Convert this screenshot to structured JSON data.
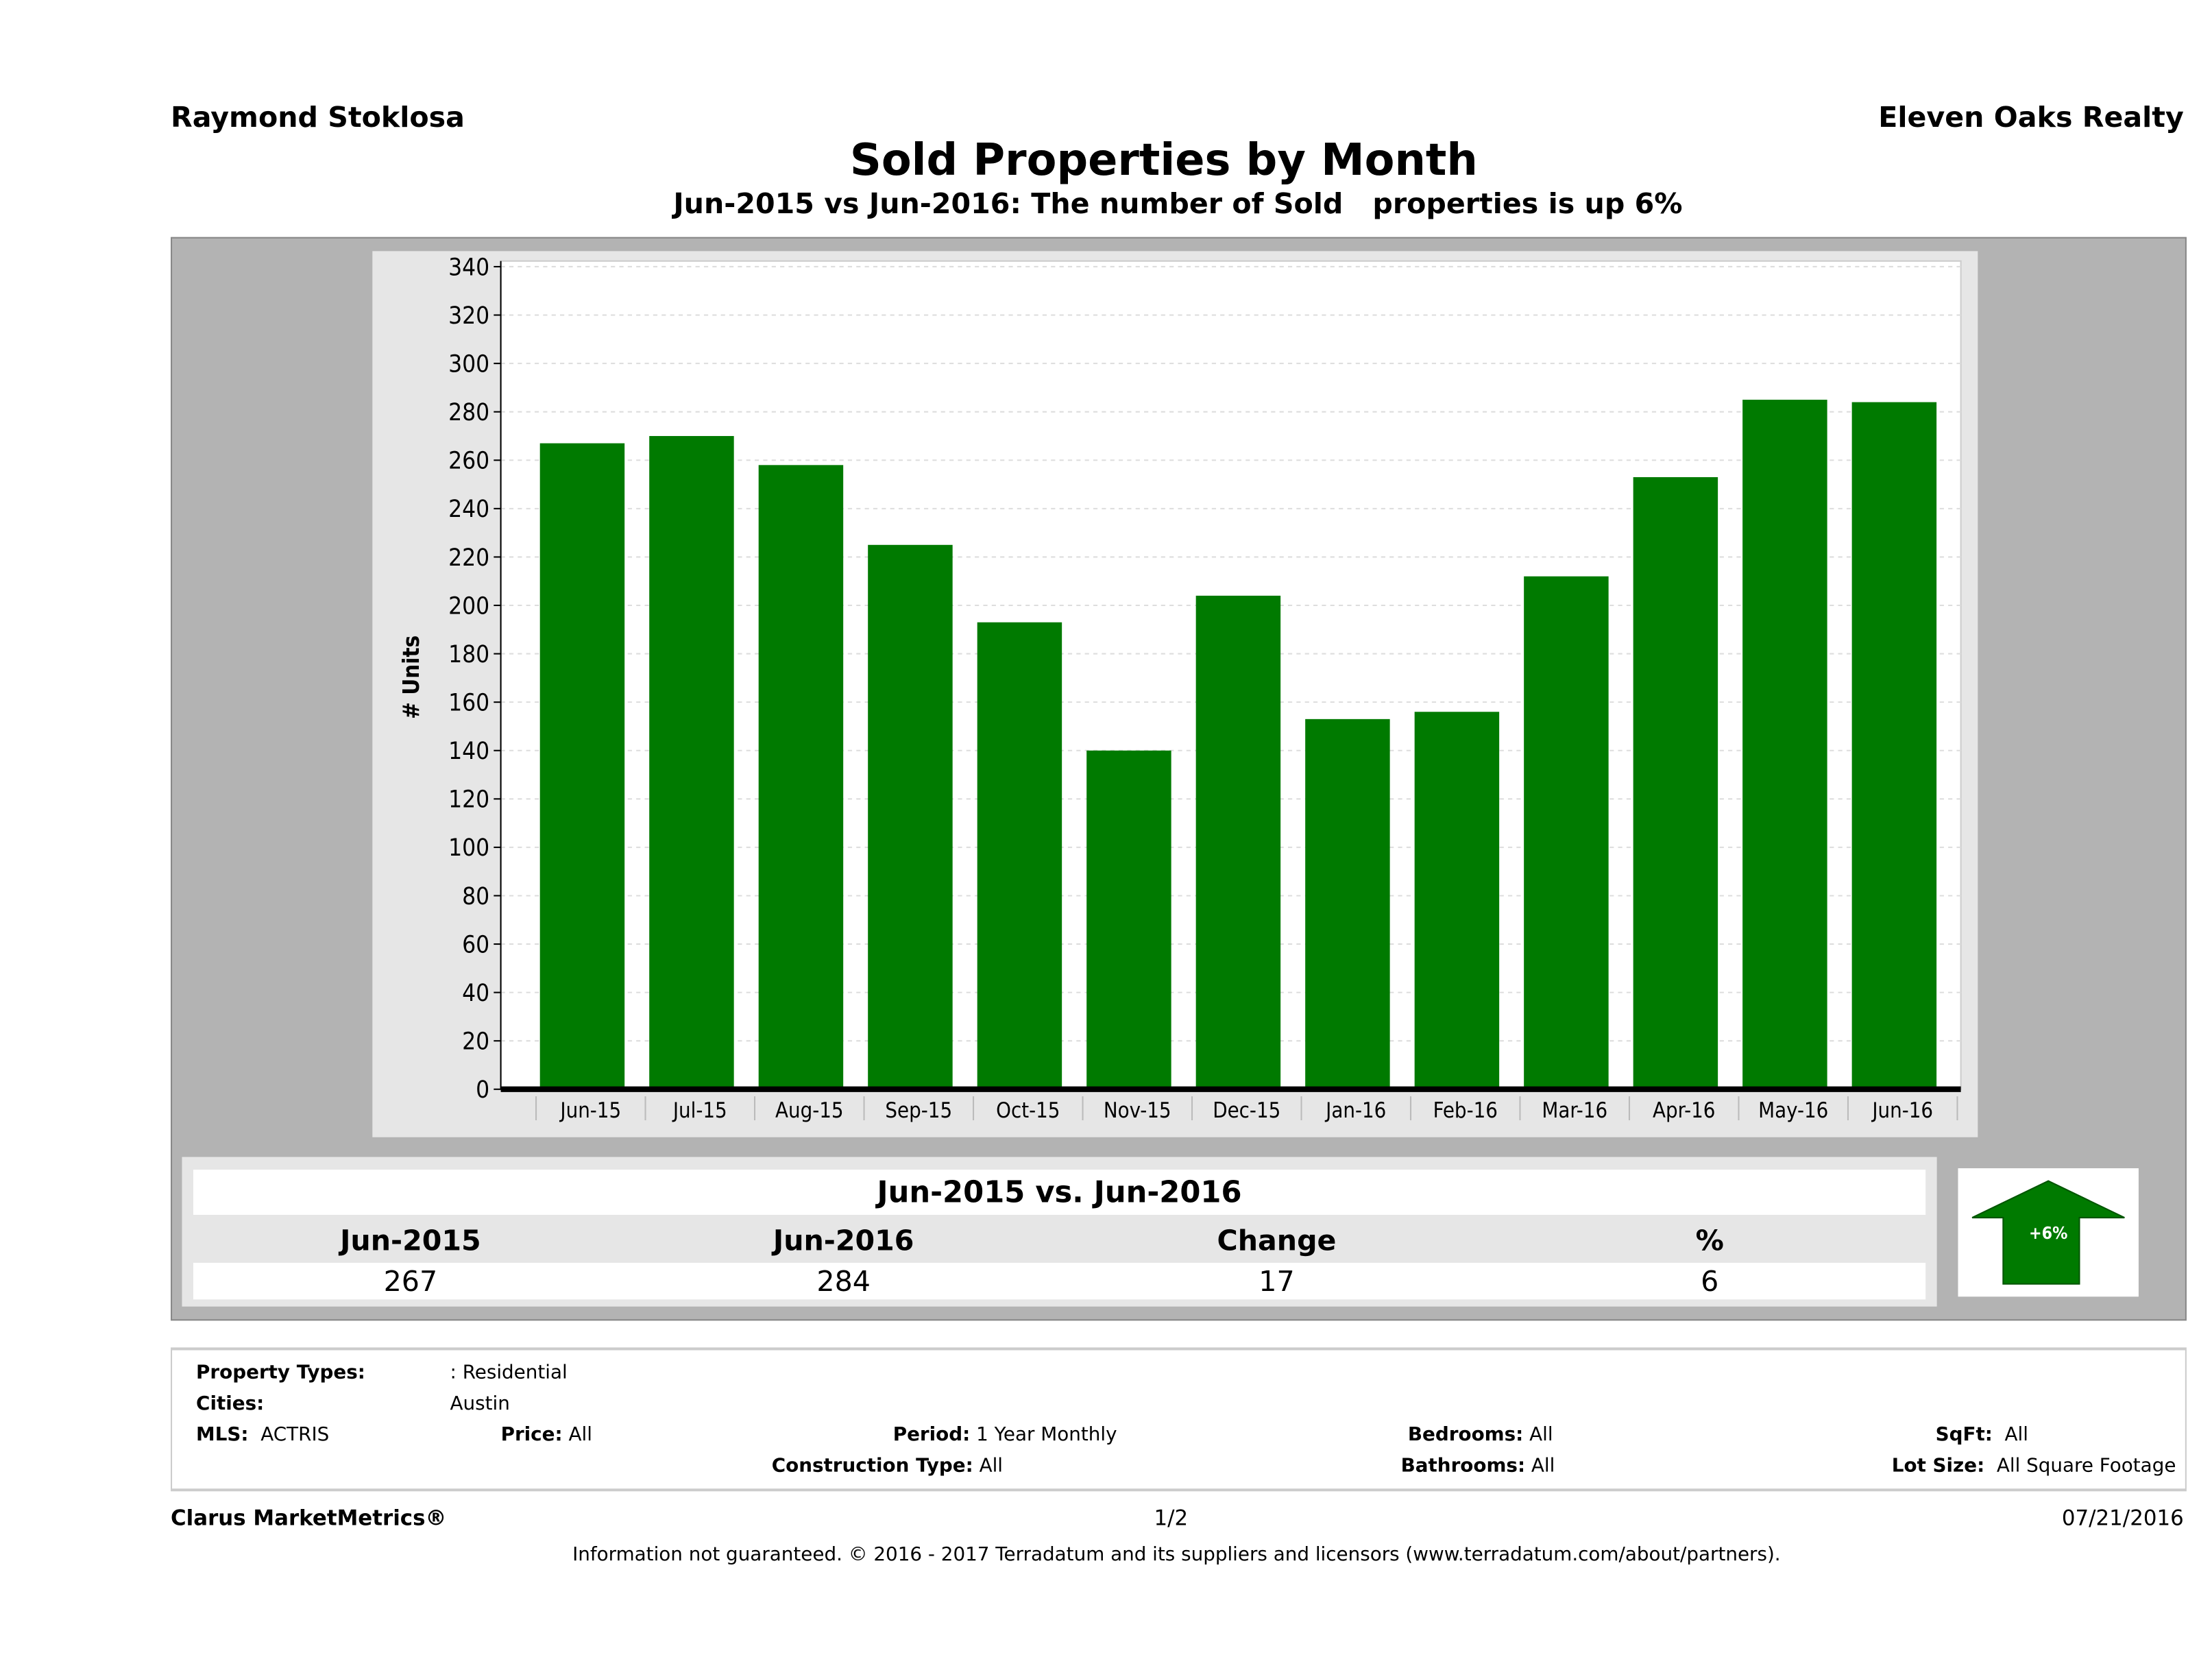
{
  "header": {
    "agent": "Raymond Stoklosa",
    "brokerage": "Eleven Oaks Realty"
  },
  "chart_data": {
    "type": "bar",
    "title": "Sold Properties by Month",
    "subtitle": "Jun-2015 vs Jun-2016: The number of Sold   properties is up 6%",
    "ylabel": "# Units",
    "xlabel": "",
    "ylim": [
      0,
      340
    ],
    "yticks": [
      0,
      20,
      40,
      60,
      80,
      100,
      120,
      140,
      160,
      180,
      200,
      220,
      240,
      260,
      280,
      300,
      320,
      340
    ],
    "grid": true,
    "bar_color": "#007a00",
    "categories": [
      "Jun-15",
      "Jul-15",
      "Aug-15",
      "Sep-15",
      "Oct-15",
      "Nov-15",
      "Dec-15",
      "Jan-16",
      "Feb-16",
      "Mar-16",
      "Apr-16",
      "May-16",
      "Jun-16"
    ],
    "values": [
      267,
      270,
      258,
      225,
      193,
      140,
      204,
      153,
      156,
      212,
      253,
      285,
      284
    ]
  },
  "summary": {
    "title": "Jun-2015 vs. Jun-2016",
    "headers": [
      "Jun-2015",
      "Jun-2016",
      "Change",
      "%"
    ],
    "values": [
      "267",
      "284",
      "17",
      "6"
    ],
    "badge": "+6%",
    "badge_color": "#007a00"
  },
  "criteria": {
    "property_types_label": "Property Types:",
    "property_types": ": Residential",
    "cities_label": "Cities:",
    "cities": "Austin",
    "mls_label": "MLS:",
    "mls": "ACTRIS",
    "price_label": "Price:",
    "price": "All",
    "period_label": "Period:",
    "period": "1 Year Monthly",
    "bedrooms_label": "Bedrooms:",
    "bedrooms": "All",
    "sqft_label": "SqFt:",
    "sqft": "All",
    "construction_label": "Construction Type:",
    "construction": "All",
    "bathrooms_label": "Bathrooms:",
    "bathrooms": "All",
    "lot_label": "Lot Size:",
    "lot": "All Square Footage"
  },
  "footer": {
    "brand": "Clarus MarketMetrics®",
    "page": "1/2",
    "date": "07/21/2016",
    "disclaimer": "Information not guaranteed. © 2016 - 2017 Terradatum and its suppliers and licensors (www.terradatum.com/about/partners)."
  }
}
